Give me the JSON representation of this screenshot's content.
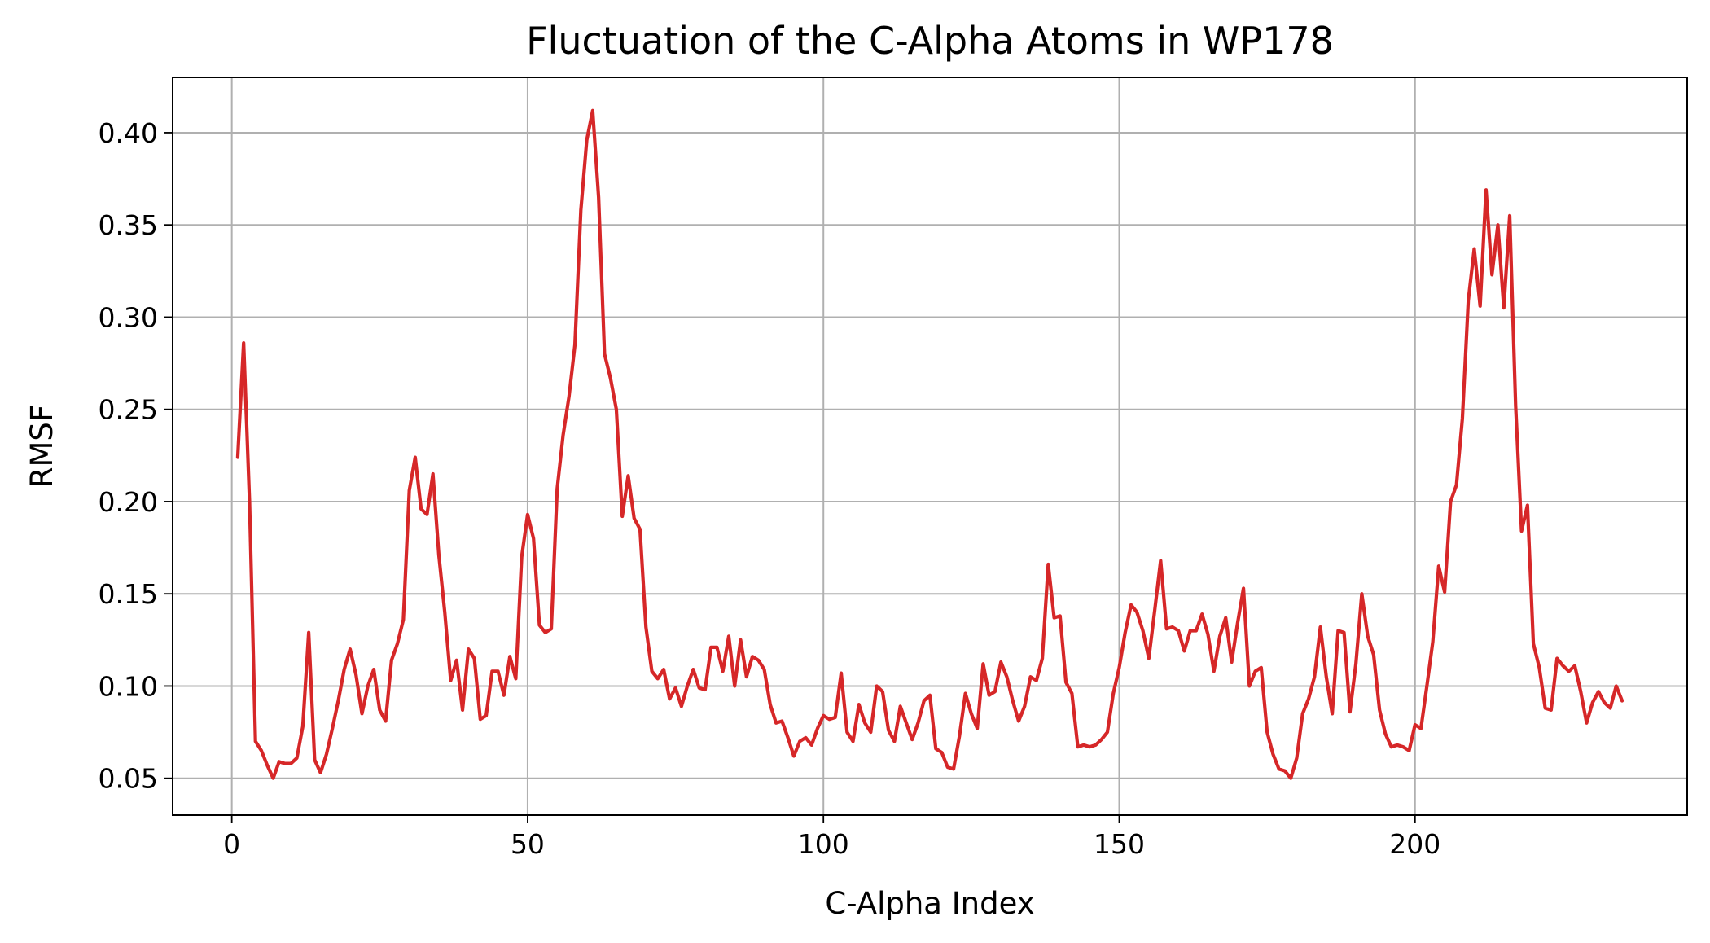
{
  "chart_data": {
    "type": "line",
    "title": "Fluctuation of the C-Alpha Atoms in WP178",
    "xlabel": "C-Alpha Index",
    "ylabel": "RMSF",
    "xlim": [
      -10,
      246
    ],
    "ylim": [
      0.03,
      0.43
    ],
    "xticks": [
      0,
      50,
      100,
      150,
      200
    ],
    "yticks": [
      0.05,
      0.1,
      0.15,
      0.2,
      0.25,
      0.3,
      0.35,
      0.4
    ],
    "xtick_labels": [
      "0",
      "50",
      "100",
      "150",
      "200"
    ],
    "ytick_labels": [
      "0.05",
      "0.10",
      "0.15",
      "0.20",
      "0.25",
      "0.30",
      "0.35",
      "0.40"
    ],
    "grid": true,
    "line_color": "#d62728",
    "series": [
      {
        "x": [
          1,
          2,
          3,
          4,
          5,
          6,
          7,
          8,
          9,
          10,
          11,
          12,
          13,
          14,
          15,
          16,
          17,
          18,
          19,
          20,
          21,
          22,
          23,
          24,
          25,
          26,
          27,
          28,
          29,
          30,
          31,
          32,
          33,
          34,
          35,
          36,
          37,
          38,
          39,
          40,
          41,
          42,
          43,
          44,
          45,
          46,
          47,
          48,
          49,
          50,
          51,
          52,
          53,
          54,
          55,
          56,
          57,
          58,
          59,
          60,
          61,
          62,
          63,
          64,
          65,
          66,
          67,
          68,
          69,
          70,
          71,
          72,
          73,
          74,
          75,
          76,
          77,
          78,
          79,
          80,
          81,
          82,
          83,
          84,
          85,
          86,
          87,
          88,
          89,
          90,
          91,
          92,
          93,
          94,
          95,
          96,
          97,
          98,
          99,
          100,
          101,
          102,
          103,
          104,
          105,
          106,
          107,
          108,
          109,
          110,
          111,
          112,
          113,
          114,
          115,
          116,
          117,
          118,
          119,
          120,
          121,
          122,
          123,
          124,
          125,
          126,
          127,
          128,
          129,
          130,
          131,
          132,
          133,
          134,
          135,
          136,
          137,
          138,
          139,
          140,
          141,
          142,
          143,
          144,
          145,
          146,
          147,
          148,
          149,
          150,
          151,
          152,
          153,
          154,
          155,
          156,
          157,
          158,
          159,
          160,
          161,
          162,
          163,
          164,
          165,
          166,
          167,
          168,
          169,
          170,
          171,
          172,
          173,
          174,
          175,
          176,
          177,
          178,
          179,
          180,
          181,
          182,
          183,
          184,
          185,
          186,
          187,
          188,
          189,
          190,
          191,
          192,
          193,
          194,
          195,
          196,
          197,
          198,
          199,
          200,
          201,
          202,
          203,
          204,
          205,
          206,
          207,
          208,
          209,
          210,
          211,
          212,
          213,
          214,
          215,
          216,
          217,
          218,
          219,
          220,
          221,
          222,
          223,
          224,
          225,
          226,
          227,
          228,
          229,
          230,
          231,
          232,
          233,
          234,
          235
        ],
        "y": [
          0.224,
          0.286,
          0.2,
          0.07,
          0.065,
          0.057,
          0.05,
          0.059,
          0.058,
          0.058,
          0.061,
          0.078,
          0.129,
          0.06,
          0.053,
          0.063,
          0.077,
          0.092,
          0.109,
          0.12,
          0.106,
          0.085,
          0.1,
          0.109,
          0.087,
          0.081,
          0.114,
          0.123,
          0.136,
          0.206,
          0.224,
          0.196,
          0.193,
          0.215,
          0.171,
          0.14,
          0.103,
          0.114,
          0.087,
          0.12,
          0.115,
          0.082,
          0.084,
          0.108,
          0.108,
          0.095,
          0.116,
          0.104,
          0.17,
          0.193,
          0.18,
          0.133,
          0.129,
          0.131,
          0.207,
          0.236,
          0.257,
          0.285,
          0.358,
          0.396,
          0.412,
          0.365,
          0.28,
          0.267,
          0.25,
          0.192,
          0.214,
          0.191,
          0.185,
          0.132,
          0.108,
          0.104,
          0.109,
          0.093,
          0.099,
          0.089,
          0.1,
          0.109,
          0.099,
          0.098,
          0.121,
          0.121,
          0.108,
          0.127,
          0.1,
          0.125,
          0.105,
          0.116,
          0.114,
          0.109,
          0.09,
          0.08,
          0.081,
          0.072,
          0.062,
          0.07,
          0.072,
          0.068,
          0.077,
          0.084,
          0.082,
          0.083,
          0.107,
          0.075,
          0.07,
          0.09,
          0.08,
          0.075,
          0.1,
          0.097,
          0.076,
          0.07,
          0.089,
          0.08,
          0.071,
          0.08,
          0.092,
          0.095,
          0.066,
          0.064,
          0.056,
          0.055,
          0.073,
          0.096,
          0.085,
          0.077,
          0.112,
          0.095,
          0.097,
          0.113,
          0.105,
          0.092,
          0.081,
          0.089,
          0.105,
          0.103,
          0.115,
          0.166,
          0.137,
          0.138,
          0.102,
          0.096,
          0.067,
          0.068,
          0.067,
          0.068,
          0.071,
          0.075,
          0.096,
          0.11,
          0.129,
          0.144,
          0.14,
          0.13,
          0.115,
          0.141,
          0.168,
          0.131,
          0.132,
          0.13,
          0.119,
          0.13,
          0.13,
          0.139,
          0.128,
          0.108,
          0.127,
          0.137,
          0.113,
          0.134,
          0.153,
          0.1,
          0.108,
          0.11,
          0.075,
          0.063,
          0.055,
          0.054,
          0.05,
          0.061,
          0.085,
          0.093,
          0.105,
          0.132,
          0.105,
          0.085,
          0.13,
          0.129,
          0.086,
          0.112,
          0.15,
          0.127,
          0.117,
          0.087,
          0.074,
          0.067,
          0.068,
          0.067,
          0.065,
          0.079,
          0.077,
          0.1,
          0.124,
          0.165,
          0.151,
          0.2,
          0.209,
          0.245,
          0.309,
          0.337,
          0.306,
          0.369,
          0.323,
          0.35,
          0.305,
          0.355,
          0.252,
          0.184,
          0.198,
          0.123,
          0.11,
          0.088,
          0.087,
          0.115,
          0.111,
          0.108,
          0.111,
          0.097,
          0.08,
          0.091,
          0.097,
          0.091,
          0.088,
          0.1,
          0.092
        ]
      }
    ]
  }
}
